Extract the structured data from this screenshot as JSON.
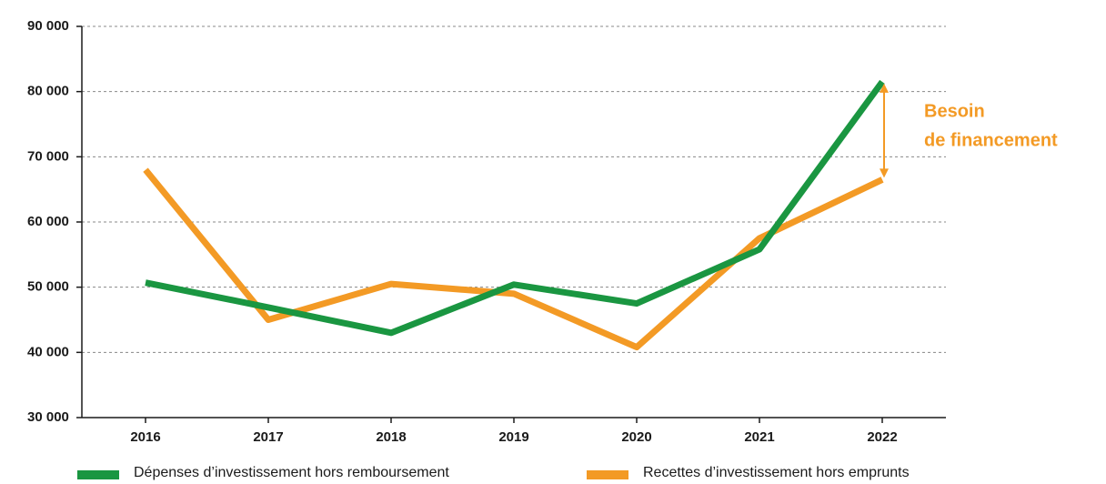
{
  "chart_data": {
    "type": "line",
    "categories": [
      "2016",
      "2017",
      "2018",
      "2019",
      "2020",
      "2021",
      "2022"
    ],
    "series": [
      {
        "name": "Dépenses d’investissement hors remboursement",
        "color": "#1a9641",
        "values": [
          50700,
          46900,
          43000,
          50400,
          47500,
          55800,
          81500
        ]
      },
      {
        "name": "Recettes d’investissement hors emprunts",
        "color": "#f39a25",
        "values": [
          68000,
          45000,
          50500,
          49000,
          40800,
          57500,
          66500
        ]
      }
    ],
    "annotation": [
      "Besoin",
      "de financement"
    ],
    "ylim": [
      30000,
      90000
    ],
    "yticks": [
      {
        "value": 30000,
        "label": "30 000"
      },
      {
        "value": 40000,
        "label": "40 000"
      },
      {
        "value": 50000,
        "label": "50 000"
      },
      {
        "value": 60000,
        "label": "60 000"
      },
      {
        "value": 70000,
        "label": "70 000"
      },
      {
        "value": 80000,
        "label": "80 000"
      },
      {
        "value": 90000,
        "label": "90 000"
      }
    ],
    "grid": true
  }
}
